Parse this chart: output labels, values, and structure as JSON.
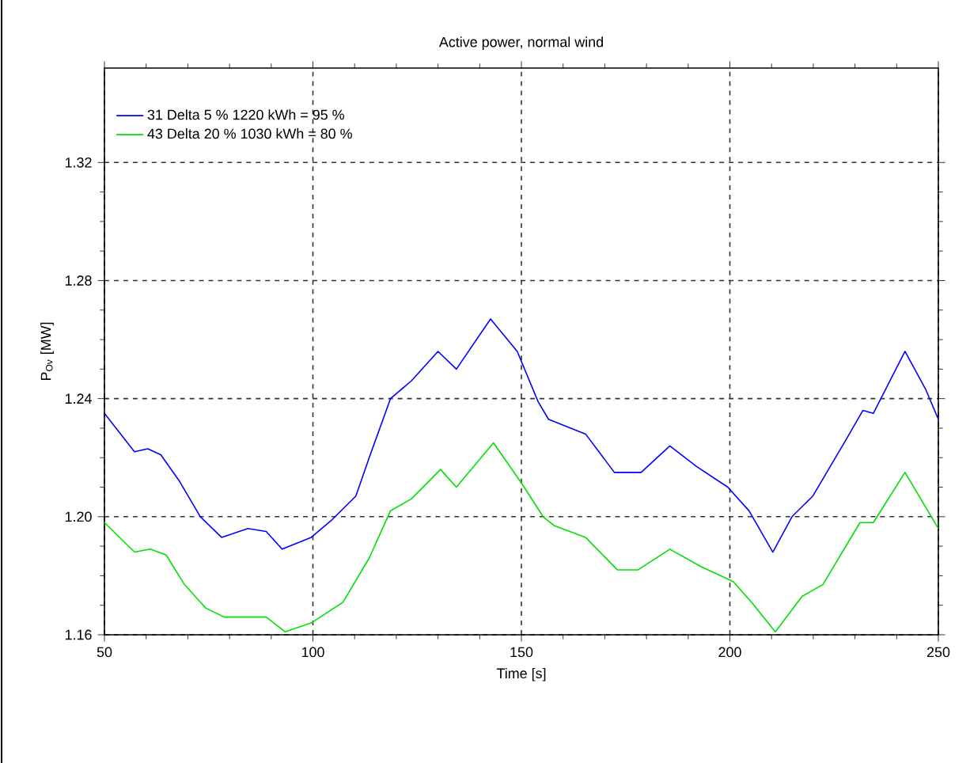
{
  "chart_data": {
    "type": "line",
    "title": "Active power, normal wind",
    "xlabel": "Time [s]",
    "ylabel": "P$_{Ov}$ [MW]",
    "xlim": [
      50,
      250
    ],
    "ylim": [
      1.16,
      1.352
    ],
    "xticks": [
      50,
      100,
      150,
      200,
      250
    ],
    "yticks": [
      1.16,
      {
        "value": 1.2,
        "label": "1.20"
      },
      1.24,
      1.28,
      1.32
    ],
    "grid": true,
    "legend": "top left",
    "line_style": "solid",
    "marker": "none",
    "series": [
      {
        "name": "31    Delta     5 %   1220 kWh = 95 %",
        "color": "#0000ff",
        "x": [
          50,
          57.2,
          60.4,
          63.5,
          68,
          73,
          78.1,
          84.4,
          88.8,
          92.6,
          99.6,
          104.6,
          110.3,
          113.5,
          118.6,
          123.6,
          130,
          134.4,
          142.6,
          149,
          154,
          156.5,
          165.4,
          172.3,
          178.7,
          185.6,
          192,
          199.5,
          204.6,
          210.3,
          214.9,
          219.9,
          227.4,
          231.9,
          234.4,
          242,
          247,
          250
        ],
        "values": [
          1.235,
          1.222,
          1.223,
          1.221,
          1.212,
          1.2,
          1.193,
          1.196,
          1.195,
          1.189,
          1.193,
          1.199,
          1.207,
          1.22,
          1.24,
          1.246,
          1.256,
          1.25,
          1.267,
          1.256,
          1.239,
          1.233,
          1.228,
          1.215,
          1.215,
          1.224,
          1.217,
          1.21,
          1.202,
          1.188,
          1.2,
          1.207,
          1.225,
          1.236,
          1.235,
          1.256,
          1.243,
          1.233
        ]
      },
      {
        "name": "43    Delta   20 %   1030 kWh = 80 %",
        "color": "#00e000",
        "x": [
          50,
          57.2,
          61,
          64.8,
          69.2,
          74.3,
          78.7,
          81.9,
          88.8,
          93.3,
          99.6,
          107.2,
          113.5,
          118.6,
          123.6,
          130.6,
          134.4,
          143.3,
          150.2,
          155.2,
          157.8,
          165.4,
          173,
          178,
          185.6,
          193.2,
          200.8,
          205.2,
          210.9,
          217.3,
          222.3,
          231.2,
          234.4,
          242,
          250
        ],
        "values": [
          1.198,
          1.188,
          1.189,
          1.187,
          1.177,
          1.169,
          1.166,
          1.166,
          1.166,
          1.161,
          1.164,
          1.171,
          1.186,
          1.202,
          1.206,
          1.216,
          1.21,
          1.225,
          1.211,
          1.2,
          1.197,
          1.193,
          1.182,
          1.182,
          1.189,
          1.183,
          1.178,
          1.171,
          1.161,
          1.173,
          1.177,
          1.198,
          1.198,
          1.215,
          1.196
        ]
      }
    ]
  }
}
